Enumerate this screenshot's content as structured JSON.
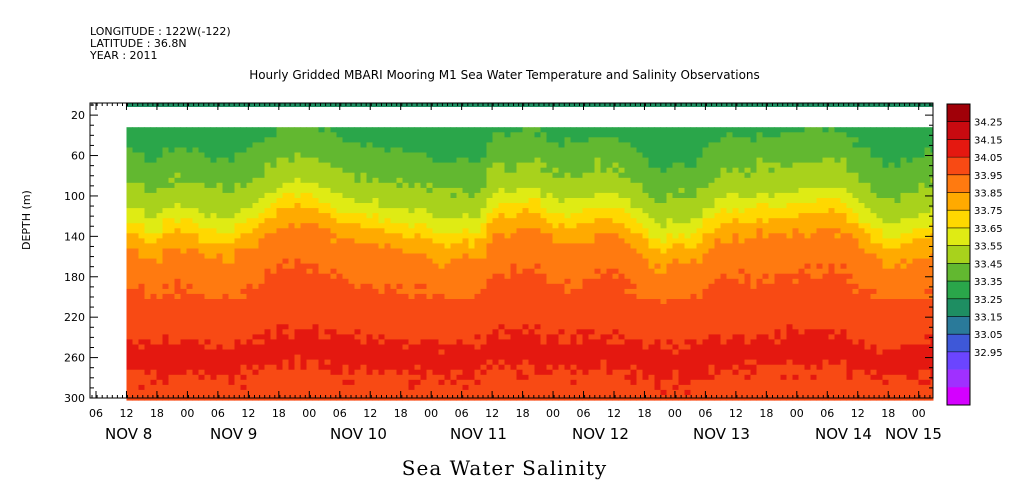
{
  "header": {
    "longitude": "LONGITUDE : 122W(-122)",
    "latitude": "LATITUDE : 36.8N",
    "year": "YEAR : 2011"
  },
  "chart_data": {
    "type": "heatmap",
    "title": "Hourly Gridded MBARI Mooring M1 Sea Water Temperature and Salinity Observations",
    "plot_title": "Sea Water Salinity",
    "ylabel": "DEPTH (m)",
    "y_ticks": [
      20,
      60,
      100,
      140,
      180,
      220,
      260,
      300
    ],
    "ylim": [
      300,
      8
    ],
    "hour_ticks": [
      "06",
      "12",
      "18",
      "00",
      "06",
      "12",
      "18",
      "00",
      "06",
      "12",
      "18",
      "00",
      "06",
      "12",
      "18",
      "00",
      "06",
      "12",
      "18",
      "00",
      "06",
      "12",
      "18",
      "00",
      "06",
      "12",
      "18",
      "00",
      "06",
      "12",
      "18",
      "00"
    ],
    "day_labels": [
      "NOV  8",
      "NOV  9",
      "NOV 10",
      "NOV 11",
      "NOV 12",
      "NOV 13",
      "NOV 14",
      "NOV 15"
    ],
    "colorbar": {
      "levels": [
        32.95,
        33.05,
        33.15,
        33.25,
        33.35,
        33.45,
        33.55,
        33.65,
        33.75,
        33.85,
        33.95,
        34.05,
        34.15,
        34.25
      ],
      "labels": [
        "34.25",
        "34.15",
        "34.05",
        "33.95",
        "33.85",
        "33.75",
        "33.65",
        "33.55",
        "33.45",
        "33.35",
        "33.25",
        "33.15",
        "33.05",
        "32.95"
      ],
      "colors": [
        "#d400ff",
        "#a030ff",
        "#6b45ff",
        "#3e58d8",
        "#2a7a9a",
        "#1e8e62",
        "#2aa64a",
        "#62b830",
        "#a8d21c",
        "#dfeb14",
        "#ffd800",
        "#ffaa00",
        "#ff7a10",
        "#f84a14",
        "#e41810",
        "#c80a10",
        "#a00008"
      ]
    },
    "depth_profile": {
      "depths": [
        35,
        60,
        80,
        100,
        115,
        130,
        145,
        165,
        190,
        215,
        235,
        255,
        275,
        300
      ],
      "values": [
        33.5,
        33.6,
        33.65,
        33.72,
        33.82,
        33.95,
        34.05,
        34.1,
        34.16,
        34.2,
        34.24,
        34.29,
        34.24,
        34.22
      ]
    },
    "surface_band": {
      "depth_range": [
        8,
        12
      ],
      "value": 33.35
    },
    "gap_depth_range": [
      12,
      32
    ],
    "missing_before": "NOV 8 12:00"
  }
}
